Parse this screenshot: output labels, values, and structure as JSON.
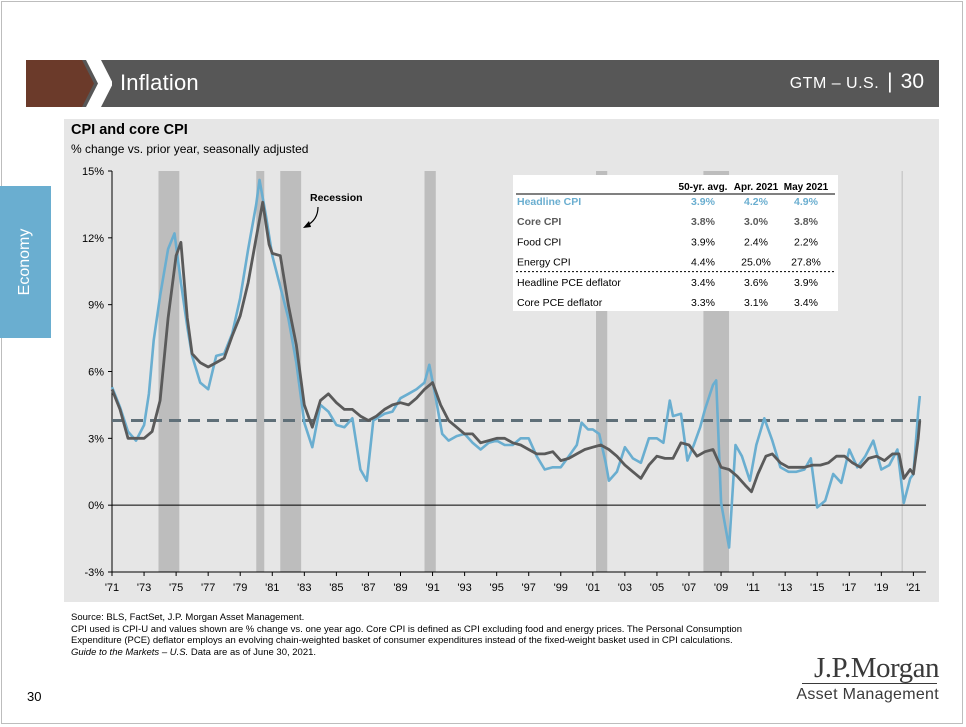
{
  "header": {
    "section_title": "Inflation",
    "gtm_label": "GTM – U.S.",
    "separator": "|",
    "slide_number": "30",
    "accent_color": "#6b3a2a",
    "band_color": "#575757"
  },
  "side_tab": {
    "label": "Economy",
    "color": "#6aaed0"
  },
  "chart_data": {
    "type": "line",
    "title": "CPI and core CPI",
    "subtitle": "% change vs. prior year, seasonally adjusted",
    "x_tick_labels": [
      "'71",
      "'73",
      "'75",
      "'77",
      "'79",
      "'81",
      "'83",
      "'85",
      "'87",
      "'89",
      "'91",
      "'93",
      "'95",
      "'97",
      "'99",
      "'01",
      "'03",
      "'05",
      "'07",
      "'09",
      "'11",
      "'13",
      "'15",
      "'17",
      "'19",
      "'21"
    ],
    "y_tick_labels": [
      "-3%",
      "0%",
      "3%",
      "6%",
      "9%",
      "12%",
      "15%"
    ],
    "y_ticks": [
      -3,
      0,
      3,
      6,
      9,
      12,
      15
    ],
    "xlim": [
      1971.0,
      2021.6
    ],
    "ylim": [
      -3,
      15
    ],
    "grid": false,
    "recession_annotation": "Recession",
    "recessions": [
      [
        1973.9,
        1975.2
      ],
      [
        1980.0,
        1980.5
      ],
      [
        1981.5,
        1982.8
      ],
      [
        1990.5,
        1991.2
      ],
      [
        2001.2,
        2001.9
      ],
      [
        2007.9,
        2009.5
      ]
    ],
    "reference_line": {
      "name": "50-yr. avg.",
      "value": 3.8
    },
    "series": [
      {
        "name": "Headline CPI",
        "color": "#6aaed0",
        "points": [
          [
            1971.0,
            5.3
          ],
          [
            1971.5,
            4.4
          ],
          [
            1972.0,
            3.3
          ],
          [
            1972.5,
            2.9
          ],
          [
            1973.0,
            3.6
          ],
          [
            1973.3,
            5.0
          ],
          [
            1973.6,
            7.4
          ],
          [
            1974.0,
            9.4
          ],
          [
            1974.5,
            11.5
          ],
          [
            1974.9,
            12.2
          ],
          [
            1975.3,
            10.0
          ],
          [
            1975.7,
            8.0
          ],
          [
            1976.0,
            6.7
          ],
          [
            1976.5,
            5.5
          ],
          [
            1977.0,
            5.2
          ],
          [
            1977.5,
            6.7
          ],
          [
            1978.0,
            6.8
          ],
          [
            1978.5,
            7.7
          ],
          [
            1979.0,
            9.3
          ],
          [
            1979.5,
            11.5
          ],
          [
            1980.0,
            13.5
          ],
          [
            1980.2,
            14.6
          ],
          [
            1980.6,
            13.0
          ],
          [
            1981.0,
            11.2
          ],
          [
            1981.5,
            9.8
          ],
          [
            1982.0,
            8.4
          ],
          [
            1982.5,
            6.4
          ],
          [
            1983.0,
            3.7
          ],
          [
            1983.5,
            2.6
          ],
          [
            1984.0,
            4.5
          ],
          [
            1984.5,
            4.2
          ],
          [
            1985.0,
            3.6
          ],
          [
            1985.5,
            3.5
          ],
          [
            1986.0,
            3.9
          ],
          [
            1986.5,
            1.6
          ],
          [
            1986.9,
            1.1
          ],
          [
            1987.3,
            3.8
          ],
          [
            1988.0,
            4.1
          ],
          [
            1988.5,
            4.2
          ],
          [
            1989.0,
            4.8
          ],
          [
            1989.5,
            5.0
          ],
          [
            1990.0,
            5.2
          ],
          [
            1990.5,
            5.5
          ],
          [
            1990.8,
            6.3
          ],
          [
            1991.2,
            4.8
          ],
          [
            1991.6,
            3.2
          ],
          [
            1992.0,
            2.9
          ],
          [
            1992.5,
            3.1
          ],
          [
            1993.0,
            3.2
          ],
          [
            1993.5,
            2.8
          ],
          [
            1994.0,
            2.5
          ],
          [
            1994.5,
            2.8
          ],
          [
            1995.0,
            2.9
          ],
          [
            1995.5,
            2.7
          ],
          [
            1996.0,
            2.7
          ],
          [
            1996.5,
            3.0
          ],
          [
            1997.0,
            3.0
          ],
          [
            1997.5,
            2.2
          ],
          [
            1998.0,
            1.6
          ],
          [
            1998.5,
            1.7
          ],
          [
            1999.0,
            1.7
          ],
          [
            1999.5,
            2.2
          ],
          [
            2000.0,
            2.7
          ],
          [
            2000.3,
            3.7
          ],
          [
            2000.7,
            3.4
          ],
          [
            2001.0,
            3.4
          ],
          [
            2001.4,
            3.2
          ],
          [
            2001.8,
            1.9
          ],
          [
            2002.0,
            1.1
          ],
          [
            2002.5,
            1.5
          ],
          [
            2003.0,
            2.6
          ],
          [
            2003.5,
            2.1
          ],
          [
            2004.0,
            1.9
          ],
          [
            2004.5,
            3.0
          ],
          [
            2005.0,
            3.0
          ],
          [
            2005.4,
            2.8
          ],
          [
            2005.8,
            4.7
          ],
          [
            2006.0,
            4.0
          ],
          [
            2006.5,
            4.1
          ],
          [
            2006.9,
            2.0
          ],
          [
            2007.3,
            2.7
          ],
          [
            2007.7,
            3.5
          ],
          [
            2008.0,
            4.3
          ],
          [
            2008.5,
            5.4
          ],
          [
            2008.7,
            5.6
          ],
          [
            2009.0,
            0.1
          ],
          [
            2009.5,
            -1.9
          ],
          [
            2009.9,
            2.7
          ],
          [
            2010.3,
            2.2
          ],
          [
            2010.8,
            1.1
          ],
          [
            2011.2,
            2.7
          ],
          [
            2011.7,
            3.9
          ],
          [
            2012.2,
            2.9
          ],
          [
            2012.7,
            1.7
          ],
          [
            2013.2,
            1.5
          ],
          [
            2013.7,
            1.5
          ],
          [
            2014.2,
            1.6
          ],
          [
            2014.6,
            2.1
          ],
          [
            2015.0,
            -0.1
          ],
          [
            2015.5,
            0.2
          ],
          [
            2016.0,
            1.4
          ],
          [
            2016.5,
            1.0
          ],
          [
            2017.0,
            2.5
          ],
          [
            2017.5,
            1.7
          ],
          [
            2018.0,
            2.2
          ],
          [
            2018.5,
            2.9
          ],
          [
            2019.0,
            1.6
          ],
          [
            2019.5,
            1.8
          ],
          [
            2020.0,
            2.5
          ],
          [
            2020.4,
            0.1
          ],
          [
            2020.8,
            1.2
          ],
          [
            2021.0,
            1.4
          ],
          [
            2021.3,
            4.2
          ],
          [
            2021.4,
            4.9
          ]
        ]
      },
      {
        "name": "Core CPI",
        "color": "#5a5a5a",
        "points": [
          [
            1971.0,
            5.2
          ],
          [
            1971.5,
            4.3
          ],
          [
            1972.0,
            3.0
          ],
          [
            1972.5,
            3.0
          ],
          [
            1973.0,
            3.0
          ],
          [
            1973.5,
            3.3
          ],
          [
            1974.0,
            4.7
          ],
          [
            1974.5,
            8.4
          ],
          [
            1975.0,
            11.2
          ],
          [
            1975.3,
            11.8
          ],
          [
            1975.7,
            8.4
          ],
          [
            1976.0,
            6.8
          ],
          [
            1976.5,
            6.4
          ],
          [
            1977.0,
            6.2
          ],
          [
            1977.5,
            6.4
          ],
          [
            1978.0,
            6.6
          ],
          [
            1978.5,
            7.6
          ],
          [
            1979.0,
            8.5
          ],
          [
            1979.5,
            10.0
          ],
          [
            1980.0,
            12.0
          ],
          [
            1980.4,
            13.6
          ],
          [
            1980.8,
            11.7
          ],
          [
            1981.0,
            11.3
          ],
          [
            1981.5,
            11.2
          ],
          [
            1982.0,
            9.0
          ],
          [
            1982.5,
            7.2
          ],
          [
            1983.0,
            4.5
          ],
          [
            1983.5,
            3.5
          ],
          [
            1984.0,
            4.7
          ],
          [
            1984.5,
            5.0
          ],
          [
            1985.0,
            4.6
          ],
          [
            1985.5,
            4.3
          ],
          [
            1986.0,
            4.3
          ],
          [
            1986.5,
            4.0
          ],
          [
            1987.0,
            3.8
          ],
          [
            1987.5,
            4.0
          ],
          [
            1988.0,
            4.3
          ],
          [
            1988.5,
            4.5
          ],
          [
            1989.0,
            4.6
          ],
          [
            1989.5,
            4.5
          ],
          [
            1990.0,
            4.8
          ],
          [
            1990.5,
            5.2
          ],
          [
            1991.0,
            5.5
          ],
          [
            1991.5,
            4.5
          ],
          [
            1992.0,
            3.8
          ],
          [
            1992.5,
            3.5
          ],
          [
            1993.0,
            3.2
          ],
          [
            1993.5,
            3.2
          ],
          [
            1994.0,
            2.8
          ],
          [
            1994.5,
            2.9
          ],
          [
            1995.0,
            3.0
          ],
          [
            1995.5,
            3.0
          ],
          [
            1996.0,
            2.8
          ],
          [
            1996.5,
            2.7
          ],
          [
            1997.0,
            2.5
          ],
          [
            1997.5,
            2.3
          ],
          [
            1998.0,
            2.3
          ],
          [
            1998.5,
            2.4
          ],
          [
            1999.0,
            2.0
          ],
          [
            1999.5,
            2.1
          ],
          [
            2000.0,
            2.3
          ],
          [
            2000.5,
            2.5
          ],
          [
            2001.0,
            2.6
          ],
          [
            2001.5,
            2.7
          ],
          [
            2002.0,
            2.5
          ],
          [
            2002.5,
            2.2
          ],
          [
            2003.0,
            1.8
          ],
          [
            2003.5,
            1.5
          ],
          [
            2004.0,
            1.2
          ],
          [
            2004.5,
            1.8
          ],
          [
            2005.0,
            2.2
          ],
          [
            2005.5,
            2.1
          ],
          [
            2006.0,
            2.1
          ],
          [
            2006.5,
            2.8
          ],
          [
            2007.0,
            2.7
          ],
          [
            2007.5,
            2.2
          ],
          [
            2008.0,
            2.4
          ],
          [
            2008.5,
            2.5
          ],
          [
            2009.0,
            1.7
          ],
          [
            2009.5,
            1.6
          ],
          [
            2010.0,
            1.3
          ],
          [
            2010.5,
            0.9
          ],
          [
            2010.9,
            0.6
          ],
          [
            2011.3,
            1.4
          ],
          [
            2011.8,
            2.2
          ],
          [
            2012.2,
            2.3
          ],
          [
            2012.7,
            1.9
          ],
          [
            2013.2,
            1.7
          ],
          [
            2013.7,
            1.7
          ],
          [
            2014.2,
            1.7
          ],
          [
            2014.7,
            1.8
          ],
          [
            2015.2,
            1.8
          ],
          [
            2015.7,
            1.9
          ],
          [
            2016.2,
            2.2
          ],
          [
            2016.7,
            2.2
          ],
          [
            2017.2,
            1.9
          ],
          [
            2017.7,
            1.7
          ],
          [
            2018.2,
            2.1
          ],
          [
            2018.7,
            2.2
          ],
          [
            2019.2,
            2.0
          ],
          [
            2019.7,
            2.3
          ],
          [
            2020.1,
            2.3
          ],
          [
            2020.4,
            1.2
          ],
          [
            2020.8,
            1.6
          ],
          [
            2021.0,
            1.4
          ],
          [
            2021.3,
            3.0
          ],
          [
            2021.4,
            3.8
          ]
        ]
      }
    ],
    "table": {
      "columns": [
        "",
        "50-yr. avg.",
        "Apr. 2021",
        "May 2021"
      ],
      "rows": [
        {
          "label": "Headline CPI",
          "values": [
            "3.9%",
            "4.2%",
            "4.9%"
          ],
          "style": "headline"
        },
        {
          "label": "Core CPI",
          "values": [
            "3.8%",
            "3.0%",
            "3.8%"
          ],
          "style": "core"
        },
        {
          "label": "Food CPI",
          "values": [
            "3.9%",
            "2.4%",
            "2.2%"
          ],
          "style": "plain"
        },
        {
          "label": "Energy CPI",
          "values": [
            "4.4%",
            "25.0%",
            "27.8%"
          ],
          "style": "plain"
        },
        {
          "label": "Headline PCE deflator",
          "values": [
            "3.4%",
            "3.6%",
            "3.9%"
          ],
          "style": "plain"
        },
        {
          "label": "Core PCE deflator",
          "values": [
            "3.3%",
            "3.1%",
            "3.4%"
          ],
          "style": "plain"
        }
      ]
    }
  },
  "footnotes": [
    "Source: BLS, FactSet, J.P. Morgan Asset Management.",
    "CPI used is CPI-U and values shown are % change vs. one year ago. Core CPI is defined as CPI excluding food and energy prices. The Personal Consumption Expenditure (PCE) deflator employs an evolving chain-weighted basket of consumer expenditures instead of the fixed-weight basket used in CPI calculations."
  ],
  "footnote_guide_title": "Guide to the Markets – U.S.",
  "footnote_guide_rest": " Data are as of June 30, 2021.",
  "page_number": "30",
  "logo": {
    "main": "J.P.Morgan",
    "sub": "Asset Management"
  }
}
